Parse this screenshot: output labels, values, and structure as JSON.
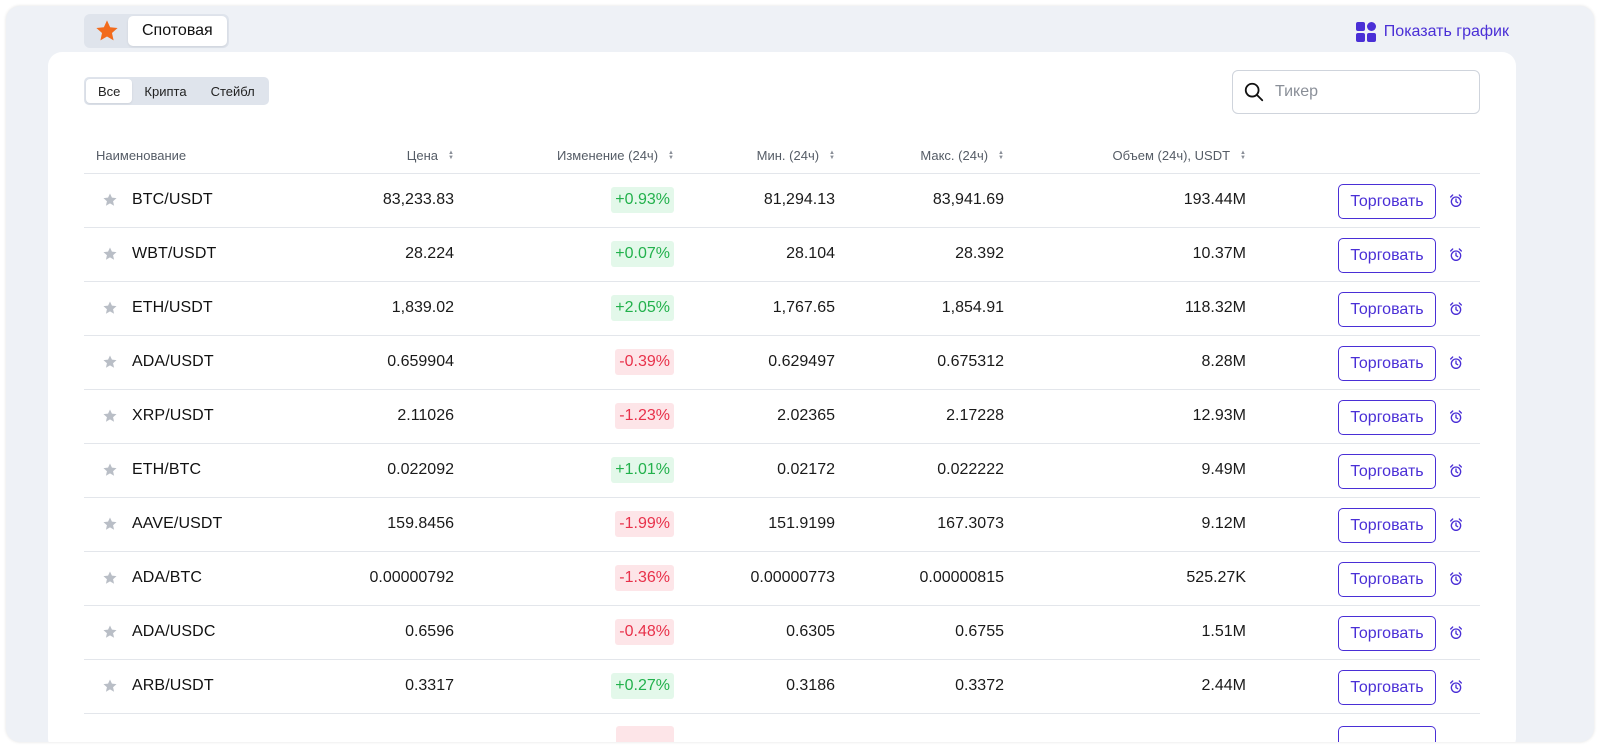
{
  "header": {
    "favorites_icon": "star-icon",
    "spot_tab_label": "Спотовая",
    "show_chart_label": "Показать график",
    "show_chart_icon": "grid-icon"
  },
  "filters": [
    {
      "label": "Все",
      "active": true
    },
    {
      "label": "Крипта",
      "active": false
    },
    {
      "label": "Стейбл",
      "active": false
    }
  ],
  "search": {
    "placeholder": "Тикер",
    "value": "",
    "icon": "search-icon"
  },
  "columns": {
    "name": "Наименование",
    "price": "Цена",
    "change": "Изменение (24ч)",
    "min": "Мин. (24ч)",
    "max": "Макс. (24ч)",
    "volume": "Объем (24ч), USDT"
  },
  "trade_label": "Торговать",
  "colors": {
    "accent": "#4a2fd6",
    "up": "#22b14c",
    "down": "#e8314a",
    "favorite": "#f26b1d"
  },
  "rows": [
    {
      "name": "BTC/USDT",
      "price": "83,233.83",
      "change": "+0.93%",
      "dir": "up",
      "min": "81,294.13",
      "max": "83,941.69",
      "volume": "193.44M"
    },
    {
      "name": "WBT/USDT",
      "price": "28.224",
      "change": "+0.07%",
      "dir": "up",
      "min": "28.104",
      "max": "28.392",
      "volume": "10.37M"
    },
    {
      "name": "ETH/USDT",
      "price": "1,839.02",
      "change": "+2.05%",
      "dir": "up",
      "min": "1,767.65",
      "max": "1,854.91",
      "volume": "118.32M"
    },
    {
      "name": "ADA/USDT",
      "price": "0.659904",
      "change": "-0.39%",
      "dir": "down",
      "min": "0.629497",
      "max": "0.675312",
      "volume": "8.28M"
    },
    {
      "name": "XRP/USDT",
      "price": "2.11026",
      "change": "-1.23%",
      "dir": "down",
      "min": "2.02365",
      "max": "2.17228",
      "volume": "12.93M"
    },
    {
      "name": "ETH/BTC",
      "price": "0.022092",
      "change": "+1.01%",
      "dir": "up",
      "min": "0.02172",
      "max": "0.022222",
      "volume": "9.49M"
    },
    {
      "name": "AAVE/USDT",
      "price": "159.8456",
      "change": "-1.99%",
      "dir": "down",
      "min": "151.9199",
      "max": "167.3073",
      "volume": "9.12M"
    },
    {
      "name": "ADA/BTC",
      "price": "0.00000792",
      "change": "-1.36%",
      "dir": "down",
      "min": "0.00000773",
      "max": "0.00000815",
      "volume": "525.27K"
    },
    {
      "name": "ADA/USDC",
      "price": "0.6596",
      "change": "-0.48%",
      "dir": "down",
      "min": "0.6305",
      "max": "0.6755",
      "volume": "1.51M"
    },
    {
      "name": "ARB/USDT",
      "price": "0.3317",
      "change": "+0.27%",
      "dir": "up",
      "min": "0.3186",
      "max": "0.3372",
      "volume": "2.44M"
    }
  ]
}
